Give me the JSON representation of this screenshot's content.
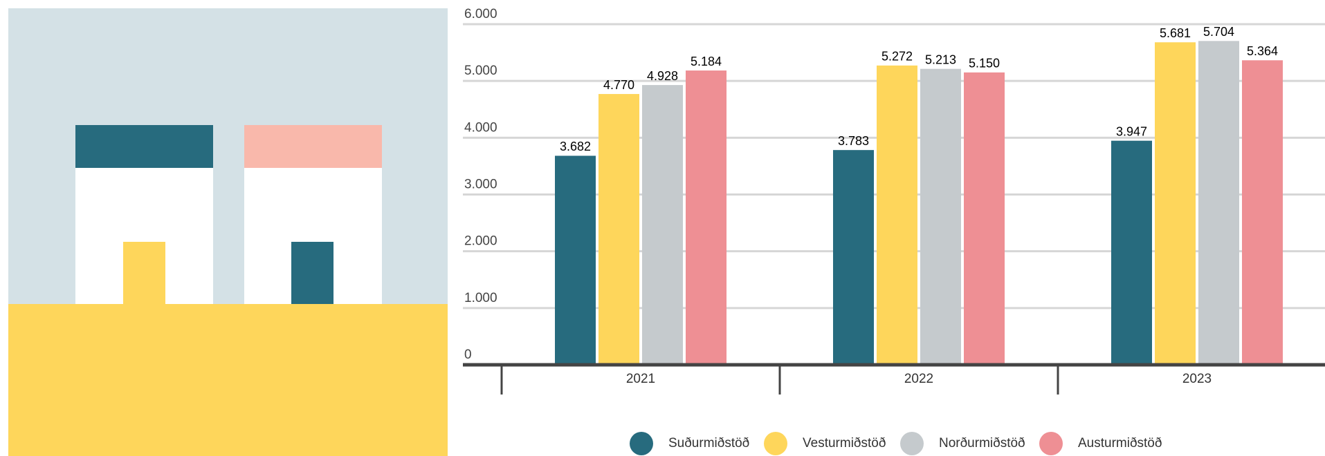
{
  "chart_data": {
    "type": "bar",
    "categories": [
      "2021",
      "2022",
      "2023"
    ],
    "series": [
      {
        "name": "Suðurmiðstöð",
        "color": "#276b7e",
        "values": [
          3682,
          3783,
          3947
        ],
        "value_labels": [
          "3.682",
          "3.783",
          "3.947"
        ]
      },
      {
        "name": "Vesturmiðstöð",
        "color": "#fed65b",
        "values": [
          4770,
          5272,
          5681
        ],
        "value_labels": [
          "4.770",
          "5.272",
          "5.681"
        ]
      },
      {
        "name": "Norðurmiðstöð",
        "color": "#c5cacd",
        "values": [
          4928,
          5213,
          5704
        ],
        "value_labels": [
          "4.928",
          "5.213",
          "5.704"
        ]
      },
      {
        "name": "Austurmiðstöð",
        "color": "#ee8f94",
        "values": [
          5184,
          5150,
          5364
        ],
        "value_labels": [
          "5.184",
          "5.150",
          "5.364"
        ]
      }
    ],
    "ylim": [
      0,
      6000
    ],
    "yticks": [
      0,
      {
        "value": 1000,
        "label": "1.000"
      },
      {
        "value": 2000,
        "label": "2.000"
      },
      {
        "value": 3000,
        "label": "3.000"
      },
      {
        "value": 4000,
        "label": "4.000"
      },
      {
        "value": 5000,
        "label": "5.000"
      },
      {
        "value": 6000,
        "label": "6.000"
      }
    ],
    "grid": true
  }
}
